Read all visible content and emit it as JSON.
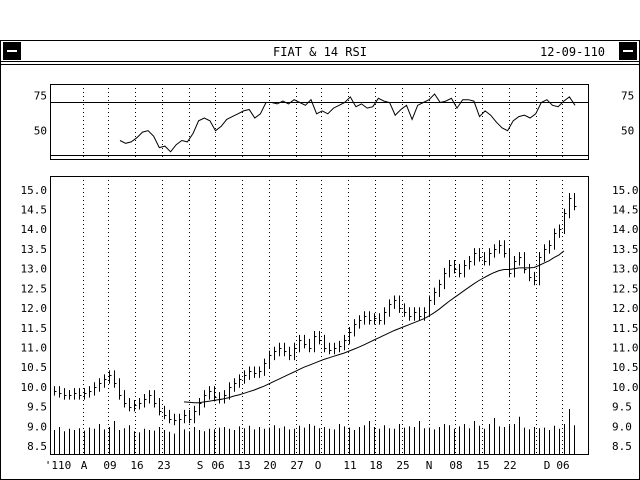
{
  "window": {
    "title": "FIAT & 14 RSI",
    "date": "12-09-110"
  },
  "chart_data": [
    {
      "type": "line",
      "name": "RSI",
      "ylim": [
        32,
        81
      ],
      "ytick_labels": [
        "75",
        "50"
      ],
      "ytick_values": [
        75,
        50
      ],
      "reference_line": 70,
      "x": [
        28,
        30,
        32,
        34,
        36,
        38,
        40,
        42,
        44,
        46,
        48,
        50,
        52,
        54,
        56,
        58,
        60,
        62,
        64,
        66,
        68,
        70,
        72,
        74,
        76,
        78,
        80,
        82,
        84,
        86,
        88,
        90,
        92,
        94,
        96,
        98,
        100,
        102,
        104,
        106,
        108,
        110,
        112,
        114,
        116,
        118,
        120,
        122,
        124,
        126,
        128,
        130,
        132,
        134,
        136,
        138,
        140,
        142,
        144,
        146,
        148,
        150,
        152,
        154,
        156,
        158,
        160,
        162,
        164,
        166,
        168,
        170,
        172,
        174,
        176,
        178,
        180,
        182,
        184,
        186,
        188,
        190
      ],
      "values": [
        43,
        41,
        42,
        45,
        49,
        50,
        46,
        38,
        39,
        35,
        40,
        43,
        42,
        48,
        57,
        59,
        57,
        50,
        53,
        58,
        60,
        62,
        64,
        65,
        59,
        62,
        70,
        70,
        69,
        71,
        69,
        72,
        70,
        68,
        72,
        62,
        64,
        62,
        66,
        68,
        70,
        74,
        67,
        69,
        66,
        67,
        73,
        71,
        70,
        61,
        65,
        68,
        58,
        68,
        70,
        72,
        76,
        70,
        71,
        73,
        66,
        72,
        72,
        71,
        60,
        64,
        61,
        56,
        52,
        50,
        57,
        60,
        61,
        59,
        62,
        70,
        72,
        68,
        67,
        71,
        74,
        68
      ]
    },
    {
      "type": "bar",
      "name": "FIAT",
      "ylim": [
        8.3,
        15.35
      ],
      "ytick_labels": [
        "15.0",
        "14.5",
        "14.0",
        "13.5",
        "13.0",
        "12.5",
        "12.0",
        "11.5",
        "11.0",
        "10.5",
        "10.0",
        "9.5",
        "9.0",
        "8.5"
      ],
      "ytick_values": [
        15.0,
        14.5,
        14.0,
        13.5,
        13.0,
        12.5,
        12.0,
        11.5,
        11.0,
        10.5,
        10.0,
        9.5,
        9.0,
        8.5
      ],
      "xtick_labels": [
        "'110",
        "A",
        "09",
        "16",
        "23",
        "S",
        "06",
        "13",
        "20",
        "27",
        "O",
        "11",
        "18",
        "25",
        "N",
        "08",
        "15",
        "22",
        "D",
        "06"
      ],
      "close": [
        9.9,
        9.85,
        9.8,
        9.8,
        9.85,
        9.8,
        9.85,
        9.9,
        10.0,
        10.1,
        10.2,
        10.3,
        10.1,
        9.8,
        9.6,
        9.5,
        9.55,
        9.6,
        9.7,
        9.8,
        9.6,
        9.4,
        9.3,
        9.2,
        9.15,
        9.2,
        9.3,
        9.2,
        9.4,
        9.6,
        9.8,
        9.9,
        9.75,
        9.7,
        9.8,
        10.0,
        10.1,
        10.2,
        10.3,
        10.4,
        10.35,
        10.4,
        10.6,
        10.8,
        10.9,
        11.0,
        10.9,
        10.8,
        11.0,
        11.2,
        11.1,
        11.0,
        11.3,
        11.2,
        11.0,
        10.95,
        11.0,
        11.05,
        11.2,
        11.4,
        11.6,
        11.7,
        11.8,
        11.7,
        11.75,
        11.7,
        11.9,
        12.1,
        12.2,
        12.0,
        11.9,
        11.8,
        11.9,
        11.8,
        11.9,
        12.2,
        12.4,
        12.6,
        12.9,
        13.1,
        13.0,
        12.9,
        13.1,
        13.2,
        13.4,
        13.3,
        13.2,
        13.4,
        13.5,
        13.6,
        13.4,
        12.9,
        13.2,
        13.3,
        13.0,
        12.8,
        12.7,
        13.3,
        13.5,
        13.6,
        13.9,
        14.0,
        14.4,
        14.8,
        14.6
      ],
      "moving_average": [
        null,
        null,
        null,
        null,
        null,
        null,
        null,
        null,
        null,
        null,
        null,
        null,
        null,
        null,
        null,
        null,
        null,
        null,
        null,
        null,
        null,
        null,
        null,
        null,
        null,
        null,
        9.62,
        9.61,
        9.6,
        9.6,
        9.62,
        9.64,
        9.66,
        9.68,
        9.7,
        9.73,
        9.77,
        9.8,
        9.84,
        9.88,
        9.92,
        9.97,
        10.02,
        10.08,
        10.14,
        10.2,
        10.26,
        10.32,
        10.38,
        10.44,
        10.5,
        10.55,
        10.6,
        10.65,
        10.7,
        10.74,
        10.78,
        10.82,
        10.86,
        10.91,
        10.96,
        11.01,
        11.07,
        11.13,
        11.19,
        11.25,
        11.31,
        11.37,
        11.43,
        11.48,
        11.53,
        11.58,
        11.63,
        11.68,
        11.73,
        11.8,
        11.88,
        11.97,
        12.07,
        12.17,
        12.26,
        12.35,
        12.44,
        12.53,
        12.62,
        12.7,
        12.77,
        12.84,
        12.9,
        12.95,
        12.98,
        12.98,
        13.0,
        13.02,
        13.02,
        13.02,
        13.03,
        13.08,
        13.14,
        13.2,
        13.28,
        13.35,
        13.45,
        null,
        null
      ],
      "volume_level": [
        0.4,
        0.45,
        0.38,
        0.42,
        0.4,
        0.43,
        0.39,
        0.44,
        0.42,
        0.5,
        0.41,
        0.45,
        0.55,
        0.4,
        0.43,
        0.48,
        0.38,
        0.36,
        0.42,
        0.4,
        0.39,
        0.45,
        0.4,
        0.37,
        0.34,
        0.5,
        0.41,
        0.38,
        0.45,
        0.4,
        0.38,
        0.42,
        0.41,
        0.44,
        0.45,
        0.42,
        0.4,
        0.46,
        0.43,
        0.47,
        0.41,
        0.45,
        0.42,
        0.44,
        0.48,
        0.43,
        0.46,
        0.41,
        0.42,
        0.47,
        0.44,
        0.5,
        0.47,
        0.43,
        0.45,
        0.42,
        0.41,
        0.5,
        0.46,
        0.44,
        0.4,
        0.45,
        0.48,
        0.55,
        0.45,
        0.42,
        0.48,
        0.43,
        0.42,
        0.5,
        0.44,
        0.46,
        0.45,
        0.55,
        0.43,
        0.44,
        0.41,
        0.45,
        0.5,
        0.48,
        0.42,
        0.46,
        0.5,
        0.43,
        0.55,
        0.47,
        0.42,
        0.5,
        0.6,
        0.46,
        0.45,
        0.48,
        0.5,
        0.62,
        0.44,
        0.41,
        0.45,
        0.43,
        0.44,
        0.4,
        0.47,
        0.42,
        0.5,
        0.75,
        0.48
      ]
    }
  ]
}
